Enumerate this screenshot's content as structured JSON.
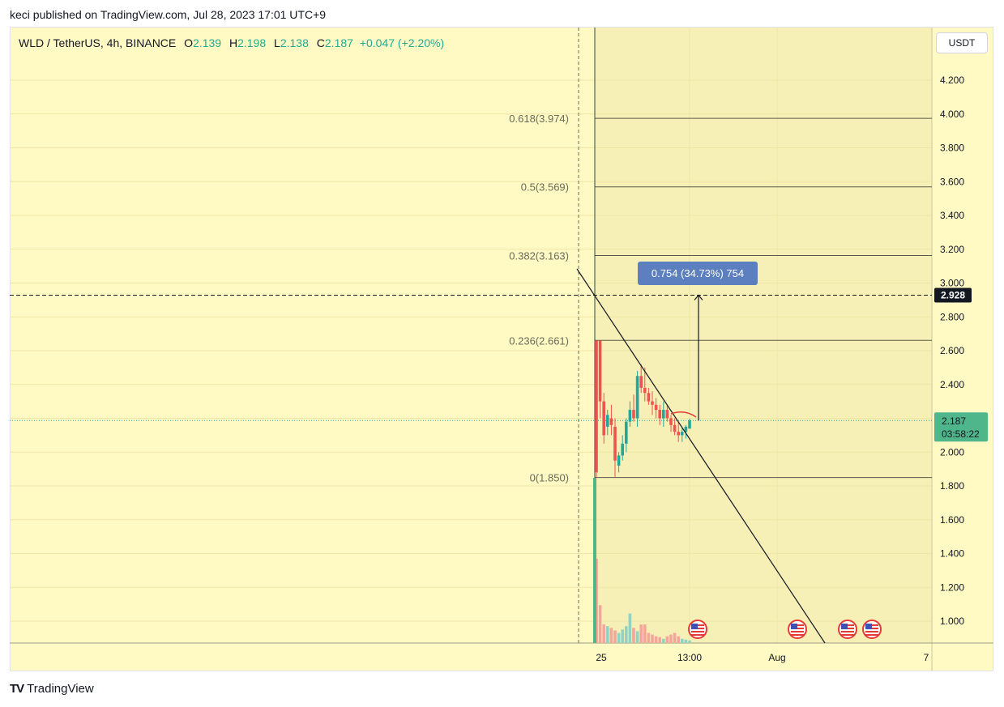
{
  "header": {
    "published_by": "keci published on TradingView.com, Jul 28, 2023 17:01 UTC+9"
  },
  "legend": {
    "symbol": "WLD / TetherUS, 4h, BINANCE",
    "o_label": "O",
    "o_value": "2.139",
    "h_label": "H",
    "h_value": "2.198",
    "l_label": "L",
    "l_value": "2.138",
    "c_label": "C",
    "c_value": "2.187",
    "change": "+0.047 (+2.20%)"
  },
  "currency_button": "USDT",
  "price_axis": {
    "ticks": [
      "4.200",
      "4.000",
      "3.800",
      "3.600",
      "3.400",
      "3.200",
      "3.000",
      "2.800",
      "2.600",
      "2.400",
      "2.200",
      "2.000",
      "1.800",
      "1.600",
      "1.400",
      "1.200",
      "1.000"
    ],
    "target_label": "2.928",
    "last_price_label": "2.187",
    "countdown_label": "03:58:22"
  },
  "time_axis": {
    "ticks": [
      "25",
      "13:00",
      "Aug",
      "7"
    ]
  },
  "fib_levels": [
    {
      "label": "0.618(3.974)",
      "price": 3.974
    },
    {
      "label": "0.5(3.569)",
      "price": 3.569
    },
    {
      "label": "0.382(3.163)",
      "price": 3.163
    },
    {
      "label": "0.236(2.661)",
      "price": 2.661
    },
    {
      "label": "0(1.850)",
      "price": 1.85
    }
  ],
  "measure_label": "0.754 (34.73%) 754",
  "footer": {
    "brand": "TradingView",
    "logo_text": "TV"
  },
  "colors": {
    "up": "#26a69a",
    "down": "#ef5350",
    "background": "#fff9c4",
    "label_bg": "#5b7fbf",
    "target_bg": "#131722"
  },
  "chart_data": {
    "type": "candlestick",
    "symbol": "WLD / TetherUS",
    "interval": "4h",
    "exchange": "BINANCE",
    "price_range": [
      0.86,
      4.4
    ],
    "candles": [
      {
        "o": 2.66,
        "h": 2.66,
        "l": 1.85,
        "c": 1.88
      },
      {
        "o": 2.66,
        "h": 2.66,
        "l": 2.2,
        "c": 2.3
      },
      {
        "o": 2.3,
        "h": 2.35,
        "l": 2.05,
        "c": 2.1
      },
      {
        "o": 2.15,
        "h": 2.25,
        "l": 2.1,
        "c": 2.22
      },
      {
        "o": 2.2,
        "h": 2.28,
        "l": 2.1,
        "c": 2.16
      },
      {
        "o": 2.15,
        "h": 2.2,
        "l": 1.85,
        "c": 1.95
      },
      {
        "o": 1.92,
        "h": 2.0,
        "l": 1.88,
        "c": 1.98
      },
      {
        "o": 1.98,
        "h": 2.1,
        "l": 1.95,
        "c": 2.05
      },
      {
        "o": 2.05,
        "h": 2.2,
        "l": 2.0,
        "c": 2.18
      },
      {
        "o": 2.18,
        "h": 2.3,
        "l": 2.15,
        "c": 2.25
      },
      {
        "o": 2.25,
        "h": 2.34,
        "l": 2.18,
        "c": 2.2
      },
      {
        "o": 2.2,
        "h": 2.48,
        "l": 2.15,
        "c": 2.45
      },
      {
        "o": 2.45,
        "h": 2.52,
        "l": 2.35,
        "c": 2.38
      },
      {
        "o": 2.38,
        "h": 2.5,
        "l": 2.3,
        "c": 2.35
      },
      {
        "o": 2.35,
        "h": 2.38,
        "l": 2.28,
        "c": 2.3
      },
      {
        "o": 2.3,
        "h": 2.36,
        "l": 2.22,
        "c": 2.28
      },
      {
        "o": 2.28,
        "h": 2.32,
        "l": 2.2,
        "c": 2.25
      },
      {
        "o": 2.25,
        "h": 2.28,
        "l": 2.16,
        "c": 2.2
      },
      {
        "o": 2.2,
        "h": 2.3,
        "l": 2.15,
        "c": 2.25
      },
      {
        "o": 2.25,
        "h": 2.28,
        "l": 2.18,
        "c": 2.2
      },
      {
        "o": 2.2,
        "h": 2.22,
        "l": 2.12,
        "c": 2.16
      },
      {
        "o": 2.16,
        "h": 2.2,
        "l": 2.1,
        "c": 2.12
      },
      {
        "o": 2.12,
        "h": 2.18,
        "l": 2.06,
        "c": 2.1
      },
      {
        "o": 2.1,
        "h": 2.14,
        "l": 2.06,
        "c": 2.12
      },
      {
        "o": 2.12,
        "h": 2.16,
        "l": 2.08,
        "c": 2.15
      },
      {
        "o": 2.139,
        "h": 2.198,
        "l": 2.138,
        "c": 2.187
      }
    ],
    "volumes": [
      1.0,
      0.45,
      0.22,
      0.2,
      0.18,
      0.15,
      0.12,
      0.16,
      0.2,
      0.35,
      0.18,
      0.14,
      0.22,
      0.22,
      0.12,
      0.1,
      0.08,
      0.07,
      0.05,
      0.08,
      0.1,
      0.12,
      0.08,
      0.05,
      0.04,
      0.03
    ],
    "target_price": 2.928,
    "last_price": 2.187
  }
}
